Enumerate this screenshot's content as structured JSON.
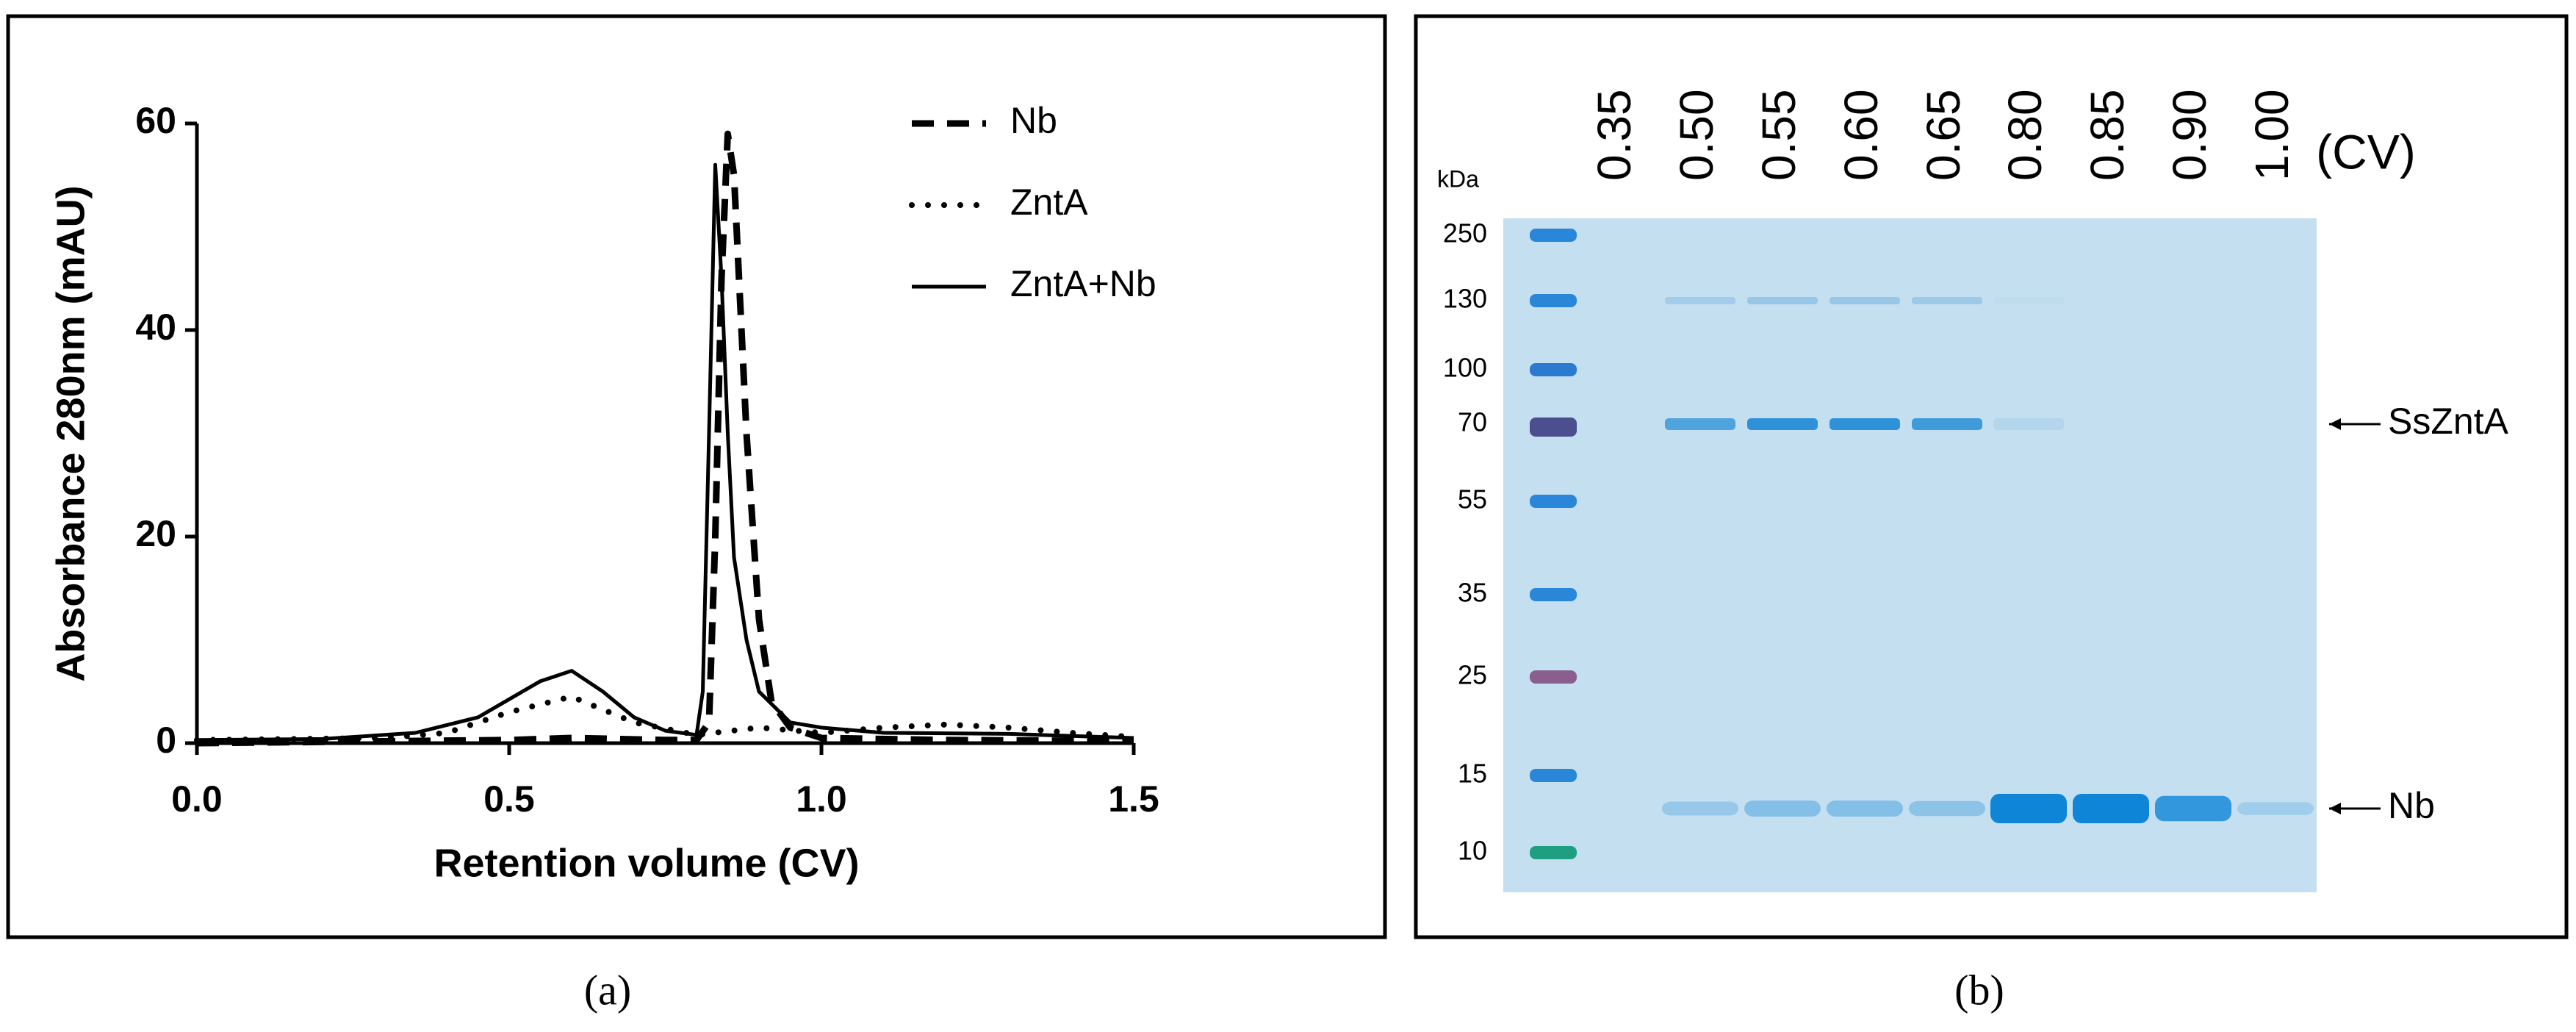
{
  "chart_data": {
    "type": "line",
    "xlabel": "Retention volume (CV)",
    "ylabel": "Absorbance 280nm (mAU)",
    "xlim": [
      0,
      1.5
    ],
    "ylim": [
      0,
      60
    ],
    "xticks": [
      {
        "value": 0,
        "label": "0.0"
      },
      0.5,
      {
        "value": 1,
        "label": "1.0"
      },
      1.5
    ],
    "yticks": [
      0,
      20,
      40,
      60
    ],
    "series": [
      {
        "name": "Nb",
        "color": "#000000",
        "dash": "dashed",
        "x": [
          0,
          0.5,
          0.6,
          0.75,
          0.8,
          0.82,
          0.83,
          0.84,
          0.85,
          0.86,
          0.88,
          0.9,
          0.92,
          0.95,
          1.0,
          1.2,
          1.5
        ],
        "values": [
          0,
          0.3,
          0.5,
          0.3,
          0.3,
          2,
          20,
          45,
          59,
          55,
          30,
          12,
          4,
          1.5,
          0.5,
          0.3,
          0.2
        ]
      },
      {
        "name": "ZntA",
        "color": "#000000",
        "dash": "dotted",
        "x": [
          0,
          0.3,
          0.4,
          0.5,
          0.6,
          0.7,
          0.8,
          0.9,
          1.0,
          1.1,
          1.2,
          1.3,
          1.4,
          1.5
        ],
        "values": [
          0.3,
          0.5,
          1,
          3,
          4.5,
          2,
          0.8,
          1.5,
          1,
          1.5,
          1.8,
          1.5,
          1,
          0.6
        ]
      },
      {
        "name": "ZntA+Nb",
        "color": "#000000",
        "dash": "solid",
        "x": [
          0,
          0.2,
          0.35,
          0.45,
          0.55,
          0.6,
          0.65,
          0.7,
          0.75,
          0.8,
          0.81,
          0.82,
          0.83,
          0.84,
          0.85,
          0.86,
          0.88,
          0.9,
          0.95,
          1.0,
          1.1,
          1.3,
          1.5
        ],
        "values": [
          0.3,
          0.4,
          1,
          2.5,
          6,
          7,
          5,
          2.5,
          1.2,
          0.8,
          5,
          30,
          56,
          45,
          30,
          18,
          10,
          5,
          2,
          1.5,
          1,
          0.9,
          0.5
        ]
      }
    ]
  },
  "gel": {
    "unit_label": "kDa",
    "markers": [
      "250",
      "130",
      "100",
      "70",
      "55",
      "35",
      "25",
      "15",
      "10"
    ],
    "lanes": [
      "0.35",
      "0.50",
      "0.55",
      "0.60",
      "0.65",
      "0.80",
      "0.85",
      "0.90",
      "1.00"
    ],
    "lane_unit": "(CV)",
    "annotations": [
      "SsZntA",
      "Nb"
    ]
  },
  "panel_labels": [
    "(a)",
    "(b)"
  ]
}
